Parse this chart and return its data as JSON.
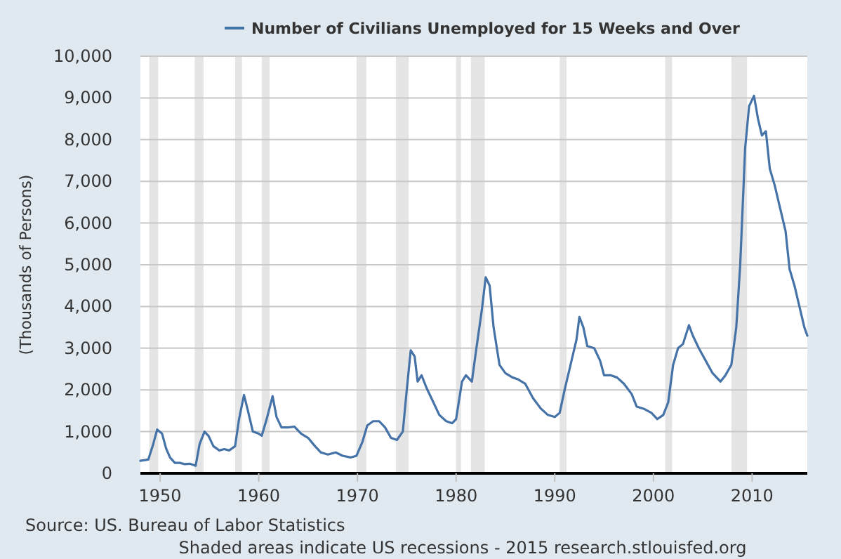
{
  "chart_data": {
    "type": "line",
    "ylabel": "(Thousands of Persons)",
    "xlim": [
      1948,
      2015.6
    ],
    "xticks": [
      1950,
      1960,
      1970,
      1980,
      1990,
      2000,
      2010
    ],
    "ylim": [
      0,
      10000
    ],
    "yticks": [
      {
        "value": 0,
        "label": "0"
      },
      {
        "value": 1000,
        "label": "1,000"
      },
      {
        "value": 2000,
        "label": "2,000"
      },
      {
        "value": 3000,
        "label": "3,000"
      },
      {
        "value": 4000,
        "label": "4,000"
      },
      {
        "value": 5000,
        "label": "5,000"
      },
      {
        "value": 6000,
        "label": "6,000"
      },
      {
        "value": 7000,
        "label": "7,000"
      },
      {
        "value": 8000,
        "label": "8,000"
      },
      {
        "value": 9000,
        "label": "9,000"
      },
      {
        "value": 10000,
        "label": "10,000"
      }
    ],
    "grid": "y",
    "legend": "top",
    "annotations": [
      "Source: US. Bureau of Labor Statistics",
      "Shaded areas indicate US recessions - 2015 research.stlouisfed.org"
    ],
    "bands": [
      {
        "axis": "x",
        "from": 1948.9,
        "to": 1949.8,
        "color": "#e5e5e5"
      },
      {
        "axis": "x",
        "from": 1953.5,
        "to": 1954.4,
        "color": "#e5e5e5"
      },
      {
        "axis": "x",
        "from": 1957.6,
        "to": 1958.3,
        "color": "#e5e5e5"
      },
      {
        "axis": "x",
        "from": 1960.3,
        "to": 1961.1,
        "color": "#e5e5e5"
      },
      {
        "axis": "x",
        "from": 1969.9,
        "to": 1970.9,
        "color": "#e5e5e5"
      },
      {
        "axis": "x",
        "from": 1973.9,
        "to": 1975.2,
        "color": "#e5e5e5"
      },
      {
        "axis": "x",
        "from": 1980.0,
        "to": 1980.5,
        "color": "#e5e5e5"
      },
      {
        "axis": "x",
        "from": 1981.5,
        "to": 1982.9,
        "color": "#e5e5e5"
      },
      {
        "axis": "x",
        "from": 1990.5,
        "to": 1991.2,
        "color": "#e5e5e5"
      },
      {
        "axis": "x",
        "from": 2001.2,
        "to": 2001.9,
        "color": "#e5e5e5"
      },
      {
        "axis": "x",
        "from": 2007.9,
        "to": 2009.5,
        "color": "#e5e5e5"
      }
    ],
    "series": [
      {
        "name": "Number of Civilians Unemployed for 15 Weeks and Over",
        "color": "#4572a7",
        "x": [
          1948.0,
          1948.8,
          1949.3,
          1949.7,
          1950.2,
          1950.6,
          1951.0,
          1951.5,
          1952.0,
          1952.5,
          1953.0,
          1953.6,
          1954.0,
          1954.5,
          1954.9,
          1955.4,
          1956.0,
          1956.5,
          1957.0,
          1957.6,
          1958.0,
          1958.5,
          1958.9,
          1959.4,
          1960.0,
          1960.3,
          1960.8,
          1961.4,
          1961.8,
          1962.3,
          1963.0,
          1963.6,
          1964.3,
          1965.0,
          1965.7,
          1966.3,
          1967.0,
          1967.8,
          1968.5,
          1969.3,
          1969.9,
          1970.5,
          1971.0,
          1971.6,
          1972.2,
          1972.8,
          1973.4,
          1974.0,
          1974.6,
          1975.0,
          1975.4,
          1975.8,
          1976.1,
          1976.5,
          1977.0,
          1977.6,
          1978.3,
          1979.0,
          1979.6,
          1980.0,
          1980.6,
          1981.0,
          1981.6,
          1982.0,
          1982.6,
          1983.0,
          1983.4,
          1983.8,
          1984.4,
          1985.0,
          1985.7,
          1986.3,
          1987.0,
          1987.8,
          1988.6,
          1989.3,
          1990.0,
          1990.5,
          1991.0,
          1991.6,
          1992.2,
          1992.5,
          1992.9,
          1993.3,
          1994.0,
          1994.6,
          1995.0,
          1995.7,
          1996.3,
          1997.0,
          1997.8,
          1998.3,
          1999.0,
          1999.8,
          2000.4,
          2001.0,
          2001.5,
          2002.0,
          2002.5,
          2003.0,
          2003.6,
          2004.0,
          2004.6,
          2005.3,
          2006.0,
          2006.8,
          2007.3,
          2007.9,
          2008.4,
          2008.8,
          2009.3,
          2009.7,
          2010.2,
          2010.6,
          2011.0,
          2011.4,
          2011.8,
          2012.3,
          2012.8,
          2013.4,
          2013.8,
          2014.3,
          2014.8,
          2015.3,
          2015.6
        ],
        "values": [
          300,
          330,
          700,
          1050,
          950,
          600,
          380,
          250,
          250,
          220,
          230,
          180,
          700,
          1000,
          900,
          650,
          550,
          580,
          550,
          650,
          1300,
          1880,
          1500,
          1000,
          950,
          900,
          1300,
          1850,
          1350,
          1100,
          1100,
          1120,
          950,
          850,
          650,
          500,
          450,
          500,
          420,
          380,
          420,
          750,
          1150,
          1250,
          1250,
          1100,
          850,
          800,
          1000,
          2000,
          2950,
          2800,
          2200,
          2350,
          2050,
          1750,
          1400,
          1250,
          1200,
          1300,
          2200,
          2350,
          2200,
          2900,
          3900,
          4700,
          4500,
          3500,
          2600,
          2400,
          2300,
          2250,
          2150,
          1800,
          1550,
          1400,
          1350,
          1450,
          2000,
          2600,
          3200,
          3750,
          3500,
          3050,
          3000,
          2700,
          2350,
          2350,
          2300,
          2150,
          1900,
          1600,
          1550,
          1450,
          1300,
          1400,
          1700,
          2600,
          3000,
          3100,
          3550,
          3300,
          3000,
          2700,
          2400,
          2200,
          2350,
          2600,
          3500,
          5000,
          7800,
          8800,
          9050,
          8500,
          8100,
          8200,
          7300,
          6900,
          6400,
          5800,
          4900,
          4500,
          4000,
          3500,
          3300
        ]
      }
    ]
  }
}
